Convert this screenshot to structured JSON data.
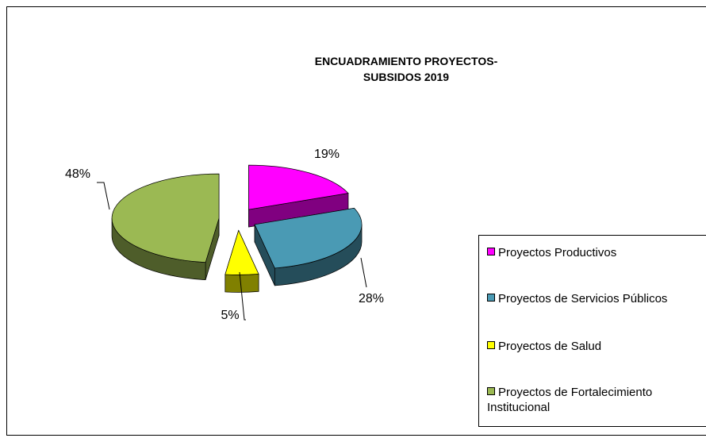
{
  "chart_data": {
    "type": "pie",
    "title": [
      "ENCUADRAMIENTO  PROYECTOS-",
      "SUBSIDOS 2019"
    ],
    "categories": [
      "Proyectos Productivos",
      "Proyectos de Servicios Públicos",
      "Proyectos de Salud",
      "Proyectos de Fortalecimiento Institucional"
    ],
    "values": [
      19,
      28,
      5,
      48
    ],
    "value_labels": [
      "19%",
      "28%",
      "5%",
      "48%"
    ],
    "colors": [
      "#ff00ff",
      "#4a9ab4",
      "#ffff00",
      "#9bb953"
    ],
    "legend": "right"
  }
}
